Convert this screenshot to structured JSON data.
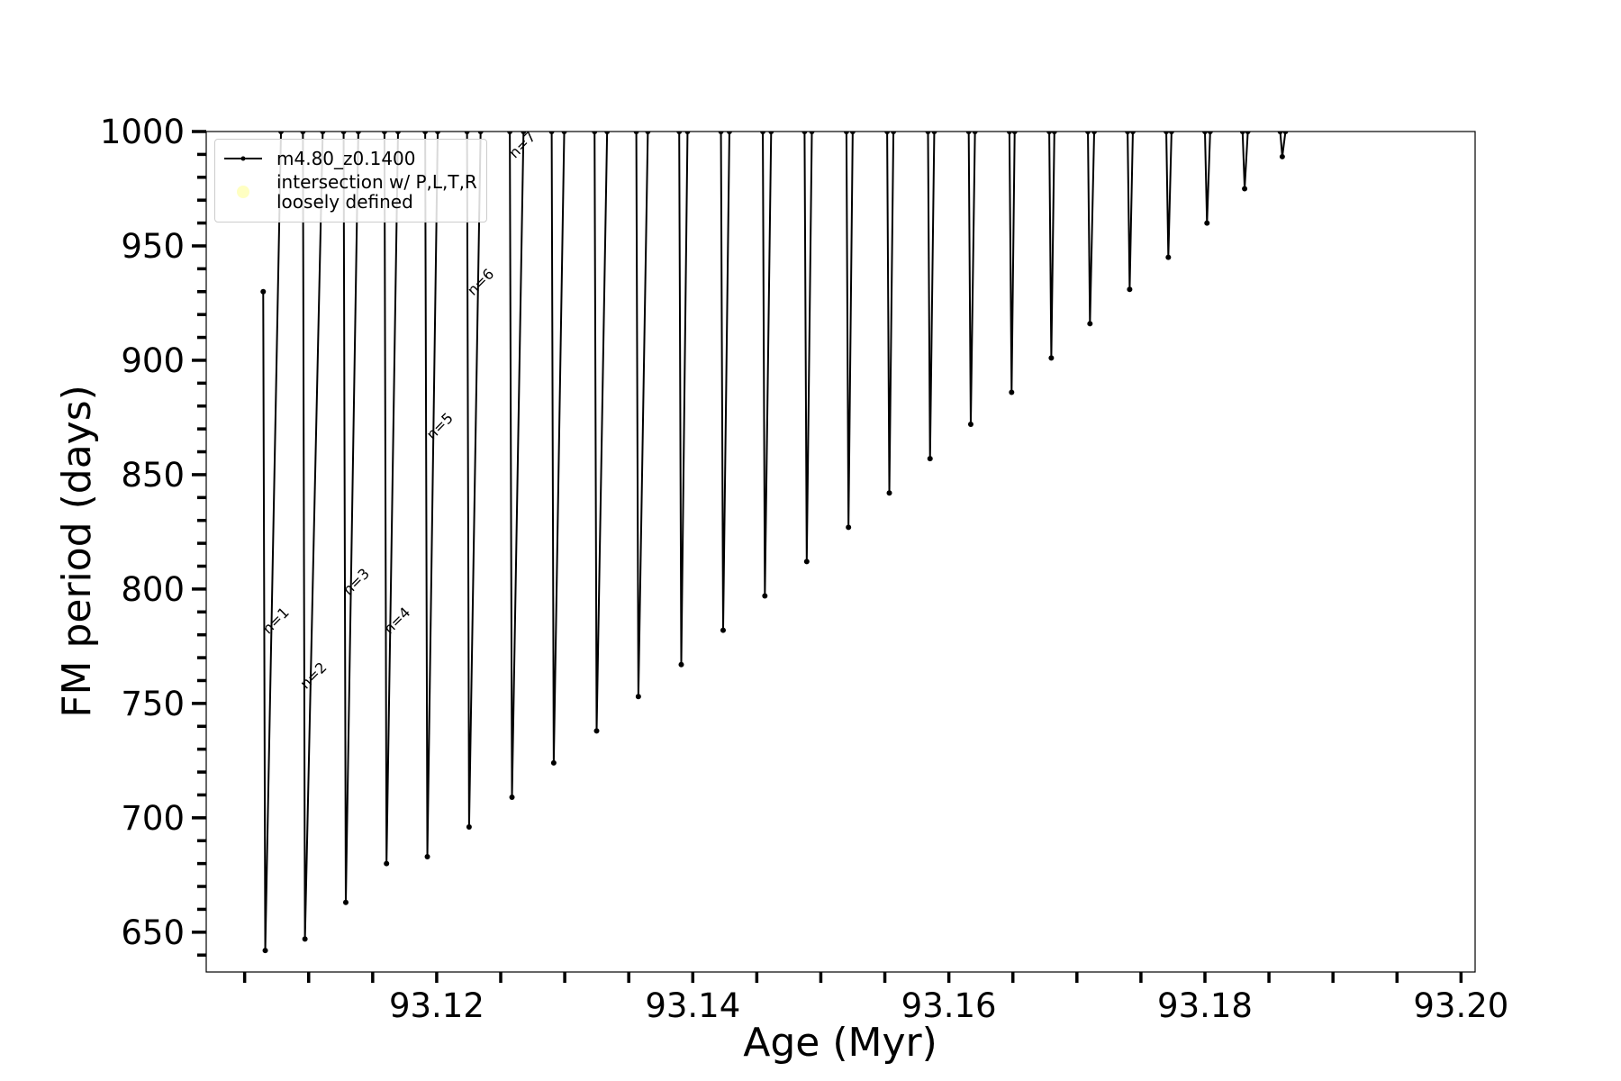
{
  "chart_data": {
    "type": "line",
    "xlabel": "Age (Myr)",
    "ylabel": "FM period (days)",
    "xlim": [
      93.102,
      93.2011
    ],
    "ylim": [
      632.6,
      1000
    ],
    "xticks": [
      93.12,
      93.14,
      93.16,
      93.18,
      {
        "value": 93.2,
        "label": "93.20"
      }
    ],
    "xminorticks": [
      93.105,
      93.11,
      93.115,
      93.125,
      93.13,
      93.135,
      93.145,
      93.15,
      93.155,
      93.165,
      93.17,
      93.175,
      93.185,
      93.19,
      93.195
    ],
    "yticks": [
      650,
      700,
      750,
      800,
      850,
      900,
      950,
      1000
    ],
    "yminorticks": [
      640,
      660,
      670,
      680,
      690,
      710,
      720,
      730,
      740,
      760,
      770,
      780,
      790,
      810,
      820,
      830,
      840,
      860,
      870,
      880,
      890,
      910,
      920,
      930,
      940,
      960,
      970,
      980,
      990
    ],
    "legend": "upper left",
    "series": [
      {
        "name": "m4.80_z0.1400",
        "color": "#000000",
        "x": [
          93.10645,
          93.10661,
          93.10784,
          null,
          93.10955,
          93.10971,
          93.1111,
          null,
          93.11273,
          93.1129,
          93.11388,
          null,
          93.11592,
          93.11608,
          93.11698,
          null,
          93.1191,
          93.11927,
          93.12008,
          null,
          93.12237,
          93.12253,
          93.12343,
          null,
          93.12571,
          93.12588,
          93.12678,
          null,
          93.12898,
          93.12914,
          93.12996,
          null,
          93.13233,
          93.13249,
          93.13331,
          null,
          93.13559,
          93.13575,
          93.13649,
          null,
          93.13894,
          93.1391,
          93.13959,
          null,
          93.1422,
          93.14237,
          93.14286,
          null,
          93.14547,
          93.14563,
          93.14612,
          null,
          93.14873,
          93.1489,
          93.1493,
          null,
          93.152,
          93.15216,
          93.15249,
          null,
          93.15518,
          93.15535,
          93.15567,
          null,
          93.15837,
          93.15853,
          93.15886,
          null,
          93.16155,
          93.16171,
          93.16204,
          null,
          93.16473,
          93.1649,
          93.16514,
          null,
          93.16784,
          93.168,
          93.16824,
          null,
          93.17086,
          93.17102,
          93.17135,
          null,
          93.17396,
          93.17412,
          93.17437,
          null,
          93.17698,
          93.17714,
          93.17739,
          null,
          93.18,
          93.18016,
          93.18041,
          null,
          93.18294,
          93.1831,
          93.18335,
          null,
          93.18588,
          93.18604,
          93.18629
        ],
        "values": [
          930,
          642,
          1000,
          null,
          1000,
          647,
          1000,
          null,
          1000,
          663,
          1000,
          null,
          1000,
          680,
          1000,
          null,
          1000,
          683,
          1000,
          null,
          1000,
          696,
          1000,
          null,
          1000,
          709,
          1000,
          null,
          1000,
          724,
          1000,
          null,
          1000,
          738,
          1000,
          null,
          1000,
          753,
          1000,
          null,
          1000,
          767,
          1000,
          null,
          1000,
          782,
          1000,
          null,
          1000,
          797,
          1000,
          null,
          1000,
          812,
          1000,
          null,
          1000,
          827,
          1000,
          null,
          1000,
          842,
          1000,
          null,
          1000,
          857,
          1000,
          null,
          1000,
          872,
          1000,
          null,
          1000,
          886,
          1000,
          null,
          1000,
          901,
          1000,
          null,
          1000,
          916,
          1000,
          null,
          1000,
          931,
          1000,
          null,
          1000,
          945,
          1000,
          null,
          1000,
          960,
          1000,
          null,
          1000,
          975,
          1000,
          null,
          1000,
          989,
          1000
        ]
      },
      {
        "name": "intersection w/ P,L,T,R\nloosely defined",
        "color": "#ffff99",
        "x": [],
        "values": []
      }
    ],
    "annotations": [
      {
        "text": "n=1",
        "x": 93.10686,
        "y": 780
      },
      {
        "text": "n=2",
        "x": 93.1098,
        "y": 756
      },
      {
        "text": "n=3",
        "x": 93.11314,
        "y": 797
      },
      {
        "text": "n=4",
        "x": 93.11633,
        "y": 780
      },
      {
        "text": "n=5",
        "x": 93.11967,
        "y": 865
      },
      {
        "text": "n=6",
        "x": 93.12286,
        "y": 928
      },
      {
        "text": "n=7",
        "x": 93.12612,
        "y": 988
      }
    ]
  }
}
